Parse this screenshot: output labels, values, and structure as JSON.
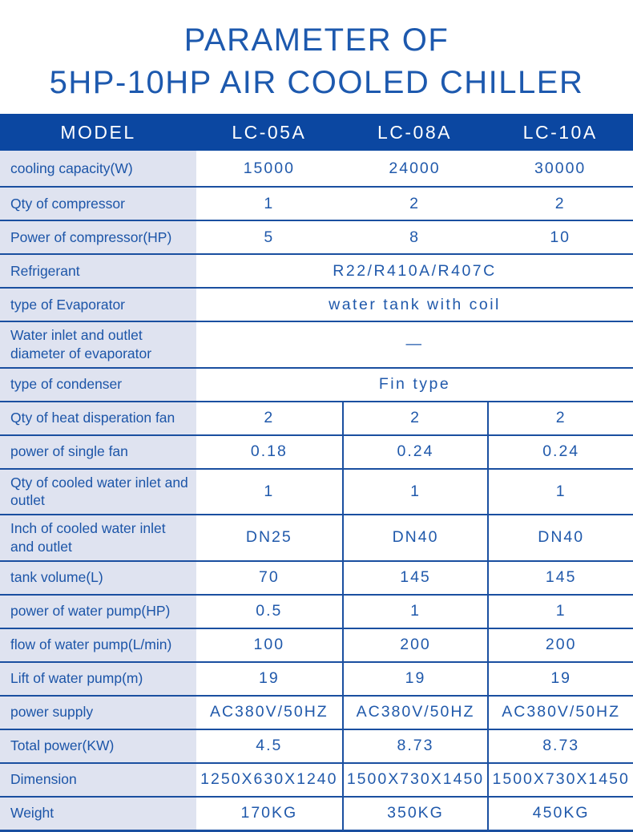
{
  "title": {
    "line1": "PARAMETER OF",
    "line2": "5HP-10HP AIR COOLED CHILLER"
  },
  "table": {
    "header": {
      "model_label": "MODEL",
      "columns": [
        "LC-05A",
        "LC-08A",
        "LC-10A"
      ]
    },
    "rows": [
      {
        "label": "cooling capacity(W)",
        "values": [
          "15000",
          "24000",
          "30000"
        ],
        "dividers": false
      },
      {
        "label": "Qty of compressor",
        "values": [
          "1",
          "2",
          "2"
        ],
        "dividers": false
      },
      {
        "label": "Power of compressor(HP)",
        "values": [
          "5",
          "8",
          "10"
        ],
        "dividers": false
      },
      {
        "label": "Refrigerant",
        "merged": "R22/R410A/R407C"
      },
      {
        "label": "type of Evaporator",
        "merged": "water tank with coil"
      },
      {
        "label": "Water inlet and outlet diameter of evaporator",
        "merged": "—"
      },
      {
        "label": "type of condenser",
        "merged": "Fin type"
      },
      {
        "label": "Qty of heat disperation fan",
        "values": [
          "2",
          "2",
          "2"
        ],
        "dividers": true
      },
      {
        "label": "power of single fan",
        "values": [
          "0.18",
          "0.24",
          "0.24"
        ],
        "dividers": true
      },
      {
        "label": "Qty of cooled water inlet and outlet",
        "values": [
          "1",
          "1",
          "1"
        ],
        "dividers": true
      },
      {
        "label": "Inch of cooled water inlet and outlet",
        "values": [
          "DN25",
          "DN40",
          "DN40"
        ],
        "dividers": true
      },
      {
        "label": "tank volume(L)",
        "values": [
          "70",
          "145",
          "145"
        ],
        "dividers": true
      },
      {
        "label": "power of water pump(HP)",
        "values": [
          "0.5",
          "1",
          "1"
        ],
        "dividers": true
      },
      {
        "label": "flow of water pump(L/min)",
        "values": [
          "100",
          "200",
          "200"
        ],
        "dividers": true
      },
      {
        "label": "Lift of water pump(m)",
        "values": [
          "19",
          "19",
          "19"
        ],
        "dividers": true
      },
      {
        "label": "power supply",
        "values": [
          "AC380V/50HZ",
          "AC380V/50HZ",
          "AC380V/50HZ"
        ],
        "dividers": true
      },
      {
        "label": "Total power(KW)",
        "values": [
          "4.5",
          "8.73",
          "8.73"
        ],
        "dividers": true
      },
      {
        "label": "Dimension",
        "values": [
          "1250X630X1240",
          "1500X730X1450",
          "1500X730X1450"
        ],
        "dividers": true
      },
      {
        "label": "Weight",
        "values": [
          "170KG",
          "350KG",
          "450KG"
        ],
        "dividers": true
      }
    ]
  },
  "colors": {
    "header_bg": "#0b47a1",
    "label_bg": "#dfe3f0",
    "text_blue": "#1c55a8",
    "border_blue": "#1a4fa0",
    "title_blue": "#1d59ae"
  }
}
